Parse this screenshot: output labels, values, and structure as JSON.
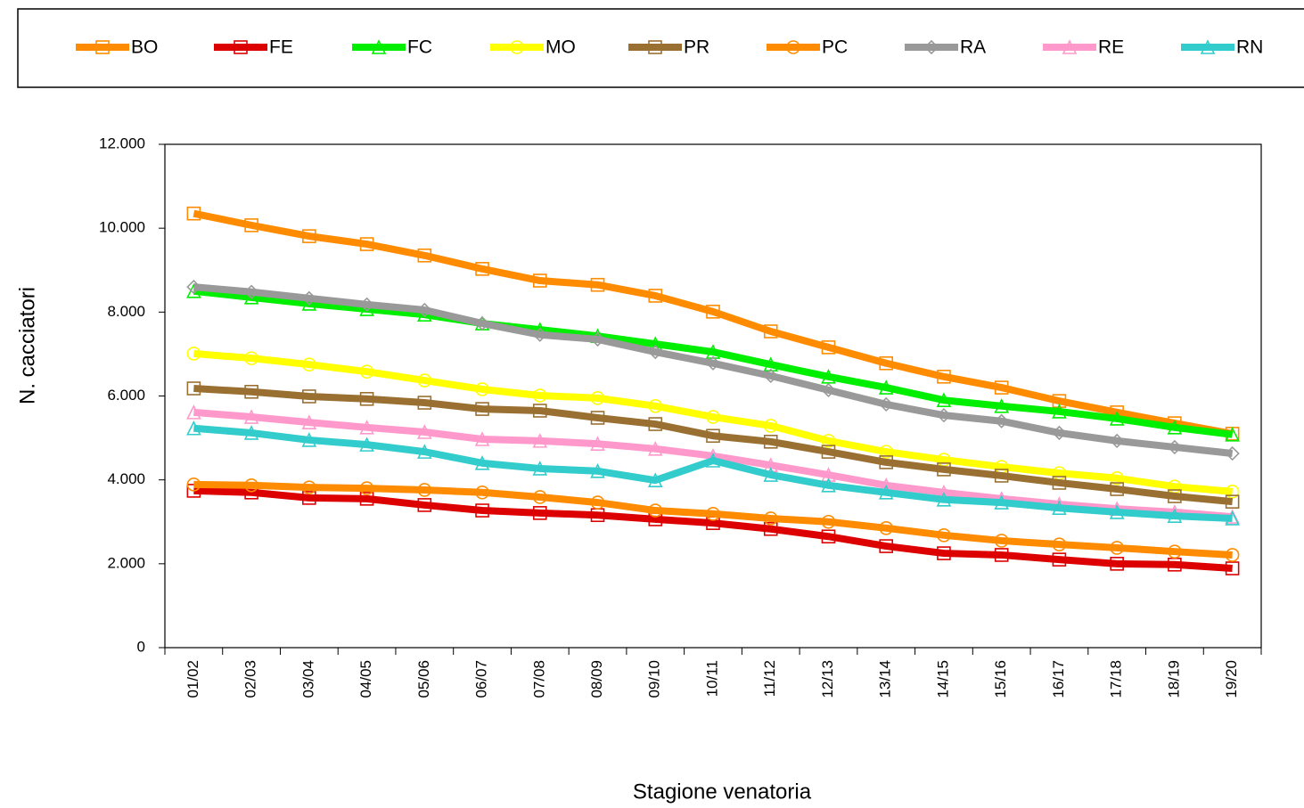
{
  "chart_data": {
    "type": "line",
    "y_label": "N. cacciatori",
    "x_label": "Stagione venatoria",
    "categories": [
      "01/02",
      "02/03",
      "03/04",
      "04/05",
      "05/06",
      "06/07",
      "07/08",
      "08/09",
      "09/10",
      "10/11",
      "11/12",
      "12/13",
      "13/14",
      "14/15",
      "15/16",
      "16/17",
      "17/18",
      "18/19",
      "19/20"
    ],
    "ylim": [
      0,
      12000
    ],
    "yticks": [
      0,
      {
        "value": 2000,
        "label": "2.000"
      },
      {
        "value": 4000,
        "label": "4.000"
      },
      {
        "value": 6000,
        "label": "6.000"
      },
      {
        "value": 8000,
        "label": "8.000"
      },
      {
        "value": 10000,
        "label": "10.000"
      },
      {
        "value": 12000,
        "label": "12.000"
      }
    ],
    "series": [
      {
        "name": "BO",
        "color": "#ff8c00",
        "marker": "square",
        "values": [
          10350,
          10070,
          9810,
          9620,
          9350,
          9030,
          8750,
          8650,
          8390,
          8010,
          7540,
          7160,
          6780,
          6460,
          6200,
          5880,
          5610,
          5350,
          5100
        ]
      },
      {
        "name": "FE",
        "color": "#dd0000",
        "marker": "square",
        "values": [
          3740,
          3700,
          3570,
          3550,
          3400,
          3270,
          3210,
          3160,
          3060,
          2970,
          2830,
          2650,
          2420,
          2250,
          2210,
          2100,
          2000,
          1980,
          1890
        ]
      },
      {
        "name": "FC",
        "color": "#00ee00",
        "marker": "triangle",
        "values": [
          8500,
          8350,
          8200,
          8070,
          7940,
          7730,
          7580,
          7430,
          7240,
          7050,
          6750,
          6460,
          6200,
          5900,
          5760,
          5630,
          5460,
          5250,
          5080
        ]
      },
      {
        "name": "MO",
        "color": "#ffff00",
        "marker": "circle",
        "values": [
          7010,
          6900,
          6750,
          6580,
          6370,
          6160,
          6010,
          5950,
          5760,
          5500,
          5290,
          4930,
          4670,
          4480,
          4310,
          4160,
          4040,
          3840,
          3720
        ]
      },
      {
        "name": "PR",
        "color": "#9a7032",
        "marker": "square",
        "values": [
          6180,
          6100,
          5990,
          5930,
          5840,
          5690,
          5650,
          5480,
          5330,
          5050,
          4910,
          4670,
          4420,
          4250,
          4100,
          3930,
          3780,
          3610,
          3480
        ]
      },
      {
        "name": "PC",
        "color": "#ff8c00",
        "marker": "circle",
        "values": [
          3890,
          3870,
          3820,
          3800,
          3760,
          3700,
          3590,
          3460,
          3270,
          3190,
          3080,
          3000,
          2850,
          2680,
          2550,
          2460,
          2380,
          2290,
          2210
        ]
      },
      {
        "name": "RA",
        "color": "#999999",
        "marker": "diamond",
        "values": [
          8600,
          8480,
          8330,
          8180,
          8050,
          7730,
          7460,
          7350,
          7050,
          6780,
          6480,
          6140,
          5800,
          5540,
          5400,
          5120,
          4930,
          4780,
          4630
        ]
      },
      {
        "name": "RE",
        "color": "#ff99cc",
        "marker": "triangle",
        "values": [
          5610,
          5500,
          5370,
          5250,
          5140,
          4970,
          4930,
          4860,
          4740,
          4570,
          4350,
          4120,
          3870,
          3700,
          3550,
          3420,
          3310,
          3230,
          3120
        ]
      },
      {
        "name": "RN",
        "color": "#33cccc",
        "marker": "triangle",
        "values": [
          5230,
          5120,
          4950,
          4840,
          4670,
          4400,
          4270,
          4210,
          3990,
          4460,
          4120,
          3870,
          3700,
          3530,
          3460,
          3330,
          3230,
          3140,
          3080
        ]
      }
    ]
  }
}
